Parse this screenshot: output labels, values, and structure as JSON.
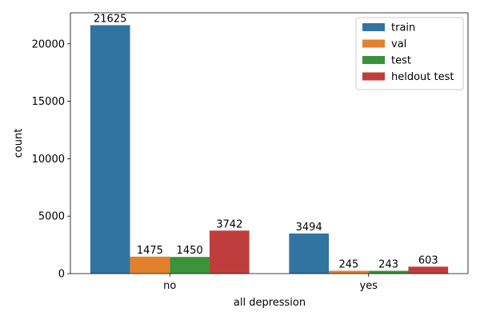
{
  "chart_data": {
    "type": "bar",
    "title": "",
    "xlabel": "all depression",
    "ylabel": "count",
    "categories": [
      "no",
      "yes"
    ],
    "series": [
      {
        "name": "train",
        "color": "#3274a1",
        "values": [
          21625,
          3494
        ]
      },
      {
        "name": "val",
        "color": "#e1812c",
        "values": [
          1475,
          245
        ]
      },
      {
        "name": "test",
        "color": "#3a923a",
        "values": [
          1450,
          243
        ]
      },
      {
        "name": "heldout test",
        "color": "#c03d3e",
        "values": [
          3742,
          603
        ]
      }
    ],
    "yticks": [
      0,
      5000,
      10000,
      15000,
      20000
    ],
    "ylim": [
      0,
      22700
    ],
    "grid": false,
    "legend_position": "top-right"
  }
}
